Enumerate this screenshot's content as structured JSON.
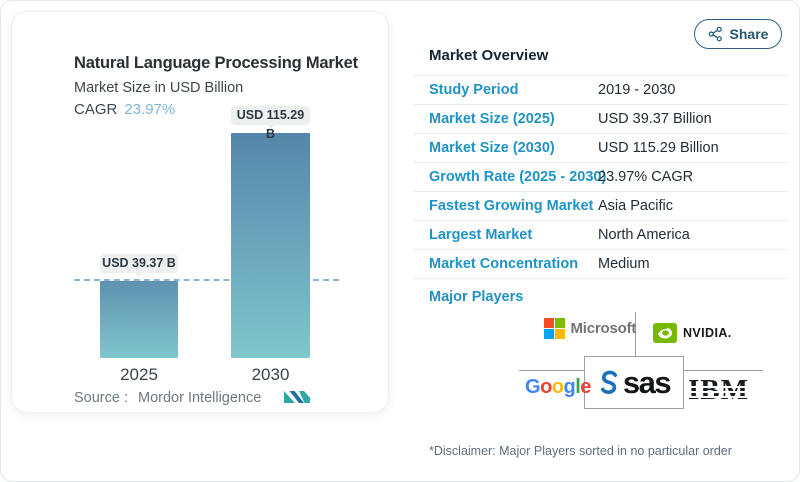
{
  "window": {
    "share_label": "Share"
  },
  "chart_card": {
    "title": "Natural Language Processing Market",
    "subtitle": "Market Size in USD Billion",
    "cagr_label": "CAGR",
    "cagr_value": "23.97%",
    "source_label": "Source :",
    "source_name": "Mordor Intelligence"
  },
  "chart_data": {
    "type": "bar",
    "title": "Natural Language Processing Market",
    "subtitle": "Market Size in USD Billion",
    "cagr": "23.97%",
    "categories": [
      "2025",
      "2030"
    ],
    "values": [
      39.37,
      115.29
    ],
    "bar_labels": [
      "USD 39.37 B",
      "USD 115.29 B"
    ],
    "ylabel": "Market Size in USD Billion",
    "ylim": [
      0,
      115.29
    ],
    "reference_line_value": 39.37,
    "grid": "off",
    "legend": "none",
    "bar_gradient_top": [
      "#5e91af",
      "#5586a9"
    ],
    "bar_gradient_bottom": [
      "#80c6cd",
      "#80c6cd"
    ],
    "source": "Mordor Intelligence"
  },
  "overview": {
    "title": "Market Overview",
    "rows": [
      {
        "label": "Study Period",
        "value": "2019 - 2030"
      },
      {
        "label": "Market Size (2025)",
        "value": "USD 39.37 Billion"
      },
      {
        "label": "Market Size (2030)",
        "value": "USD 115.29 Billion"
      },
      {
        "label": "Growth Rate (2025 - 2030)",
        "value": "23.97% CAGR"
      },
      {
        "label": "Fastest Growing Market",
        "value": "Asia Pacific"
      },
      {
        "label": "Largest Market",
        "value": "North America"
      },
      {
        "label": "Market Concentration",
        "value": "Medium"
      }
    ],
    "major_players_label": "Major Players",
    "players": {
      "microsoft": "Microsoft",
      "nvidia": "NVIDIA.",
      "google_letters": [
        {
          "ch": "G",
          "color": "#4285F4"
        },
        {
          "ch": "o",
          "color": "#EA4335"
        },
        {
          "ch": "o",
          "color": "#FBBC05"
        },
        {
          "ch": "g",
          "color": "#4285F4"
        },
        {
          "ch": "l",
          "color": "#34A853"
        },
        {
          "ch": "e",
          "color": "#EA4335"
        }
      ],
      "sas": "sas",
      "ibm": "IBM"
    },
    "disclaimer": "*Disclaimer: Major Players sorted in no particular order"
  },
  "colors": {
    "accent_label": "#2093c5",
    "cagr_value": "#7fb4d8",
    "heading": "#152737",
    "value_text": "#222d36",
    "share_button": "#27546f",
    "reference_line": "#76a7c8",
    "badge_bg": "#edf0ef",
    "microsoft_squares": [
      "#f25022",
      "#7fba00",
      "#00a4ef",
      "#ffb900"
    ],
    "microsoft_text": "#737373",
    "nvidia_green": "#76b900",
    "sas_blue": "#1b72b8",
    "mordor_teal": "#2fa7a4",
    "mordor_navy": "#1f6fa0"
  }
}
